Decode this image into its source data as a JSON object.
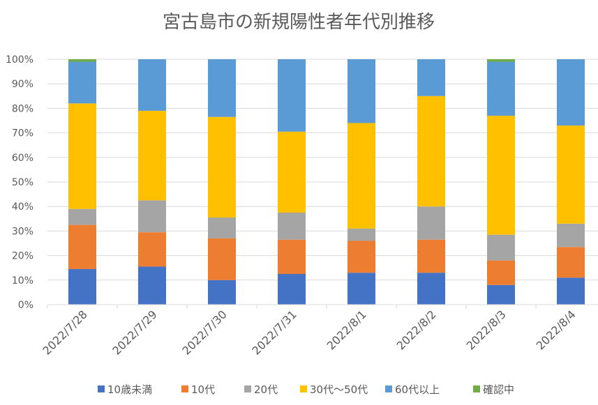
{
  "chart_data": {
    "type": "bar",
    "stacked": true,
    "percent_stacked": true,
    "title": "宮古島市の新規陽性者年代別推移",
    "xlabel": "",
    "ylabel": "",
    "ylim": [
      0,
      100
    ],
    "yticks": [
      "0%",
      "10%",
      "20%",
      "30%",
      "40%",
      "50%",
      "60%",
      "70%",
      "80%",
      "90%",
      "100%"
    ],
    "categories": [
      "2022/7/28",
      "2022/7/29",
      "2022/7/30",
      "2022/7/31",
      "2022/8/1",
      "2022/8/2",
      "2022/8/3",
      "2022/8/4"
    ],
    "legend_position": "bottom",
    "series": [
      {
        "name": "10歳未満",
        "color": "#4472C4",
        "values": [
          14.5,
          15.5,
          10.0,
          12.5,
          13.0,
          13.0,
          8.0,
          11.0
        ]
      },
      {
        "name": "10代",
        "color": "#ED7D31",
        "values": [
          18.0,
          14.0,
          17.0,
          14.0,
          13.0,
          13.5,
          10.0,
          12.5
        ]
      },
      {
        "name": "20代",
        "color": "#A5A5A5",
        "values": [
          6.5,
          13.0,
          8.5,
          11.0,
          5.0,
          13.5,
          10.5,
          9.5
        ]
      },
      {
        "name": "30代～50代",
        "color": "#FFC000",
        "values": [
          43.0,
          36.5,
          41.0,
          33.0,
          43.0,
          45.0,
          48.5,
          40.0
        ]
      },
      {
        "name": "60代以上",
        "color": "#5B9BD5",
        "values": [
          17.0,
          21.0,
          23.5,
          29.5,
          26.0,
          15.0,
          22.0,
          27.0
        ]
      },
      {
        "name": "確認中",
        "color": "#70AD47",
        "values": [
          1.0,
          0.0,
          0.0,
          0.0,
          0.0,
          0.0,
          1.0,
          0.0
        ]
      }
    ]
  }
}
